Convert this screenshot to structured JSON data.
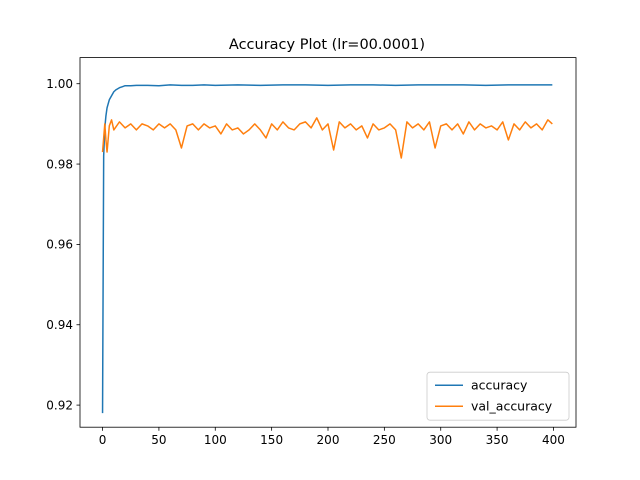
{
  "chart_data": {
    "type": "line",
    "title": "Accuracy Plot (lr=00.0001)",
    "xlabel": "",
    "ylabel": "",
    "xlim": [
      -20,
      420
    ],
    "ylim": [
      0.9145,
      1.0065
    ],
    "xticks": [
      0,
      50,
      100,
      150,
      200,
      250,
      300,
      350,
      400
    ],
    "yticks": [
      0.92,
      0.94,
      0.96,
      0.98,
      1.0
    ],
    "ytick_labels": [
      "0.92",
      "0.94",
      "0.96",
      "0.98",
      "1.00"
    ],
    "grid": false,
    "legend_position": "lower-right",
    "series": [
      {
        "name": "accuracy",
        "color": "#1f77b4",
        "x": [
          0,
          1,
          2,
          3,
          4,
          5,
          6,
          8,
          10,
          12,
          15,
          18,
          20,
          25,
          30,
          40,
          50,
          60,
          70,
          80,
          90,
          100,
          120,
          140,
          160,
          180,
          200,
          220,
          240,
          260,
          280,
          300,
          320,
          340,
          360,
          380,
          399
        ],
        "y": [
          0.918,
          0.982,
          0.989,
          0.992,
          0.994,
          0.995,
          0.996,
          0.997,
          0.998,
          0.9985,
          0.999,
          0.9993,
          0.9995,
          0.9995,
          0.9996,
          0.9996,
          0.9995,
          0.9997,
          0.9996,
          0.9996,
          0.9997,
          0.9996,
          0.9997,
          0.9996,
          0.9997,
          0.9997,
          0.9996,
          0.9997,
          0.9997,
          0.9996,
          0.9997,
          0.9997,
          0.9997,
          0.9996,
          0.9997,
          0.9997,
          0.9997
        ]
      },
      {
        "name": "val_accuracy",
        "color": "#ff7f0e",
        "x": [
          0,
          2,
          3,
          4,
          6,
          8,
          10,
          15,
          20,
          25,
          30,
          35,
          40,
          45,
          50,
          55,
          60,
          65,
          70,
          75,
          80,
          85,
          90,
          95,
          100,
          105,
          110,
          115,
          120,
          125,
          130,
          135,
          140,
          145,
          150,
          155,
          160,
          165,
          170,
          175,
          180,
          185,
          190,
          195,
          200,
          205,
          210,
          215,
          220,
          225,
          230,
          235,
          240,
          245,
          250,
          255,
          260,
          265,
          270,
          275,
          280,
          285,
          290,
          295,
          300,
          305,
          310,
          315,
          320,
          325,
          330,
          335,
          340,
          345,
          350,
          355,
          360,
          365,
          370,
          375,
          380,
          385,
          390,
          395,
          399
        ],
        "y": [
          0.983,
          0.99,
          0.986,
          0.983,
          0.9895,
          0.991,
          0.9885,
          0.9905,
          0.989,
          0.99,
          0.9885,
          0.99,
          0.9895,
          0.9885,
          0.99,
          0.989,
          0.99,
          0.9885,
          0.984,
          0.9895,
          0.99,
          0.9885,
          0.99,
          0.989,
          0.9895,
          0.9875,
          0.99,
          0.9885,
          0.989,
          0.9875,
          0.9885,
          0.99,
          0.9885,
          0.9865,
          0.99,
          0.9885,
          0.9905,
          0.989,
          0.9885,
          0.99,
          0.9905,
          0.989,
          0.9915,
          0.9885,
          0.99,
          0.9835,
          0.9905,
          0.989,
          0.99,
          0.9885,
          0.9895,
          0.9865,
          0.99,
          0.9885,
          0.989,
          0.99,
          0.9885,
          0.9815,
          0.9905,
          0.989,
          0.99,
          0.9885,
          0.9905,
          0.984,
          0.9895,
          0.99,
          0.9885,
          0.99,
          0.9875,
          0.9905,
          0.9885,
          0.99,
          0.989,
          0.9895,
          0.9885,
          0.9905,
          0.986,
          0.99,
          0.9885,
          0.9905,
          0.989,
          0.99,
          0.9885,
          0.991,
          0.99
        ]
      }
    ]
  }
}
